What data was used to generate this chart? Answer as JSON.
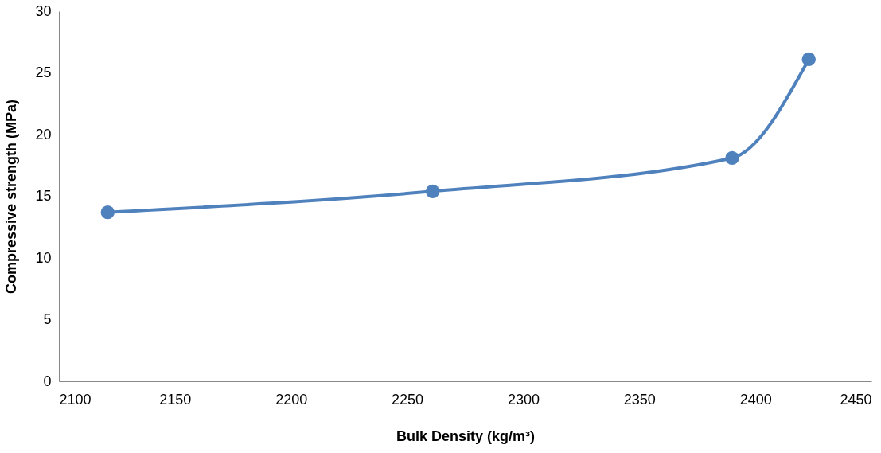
{
  "chart_data": {
    "type": "line",
    "xlabel": "Bulk Density (kg/m³)",
    "ylabel": "Compressive strength (MPa)",
    "x": [
      2121,
      2261,
      2390,
      2423
    ],
    "series": [
      {
        "color": "#4f81bd",
        "values": [
          13.7,
          15.4,
          18.1,
          26.1
        ]
      }
    ],
    "xlim": [
      2100,
      2450
    ],
    "xticks": [
      2100,
      2150,
      2200,
      2250,
      2300,
      2350,
      2400,
      2450
    ],
    "ylim": [
      0,
      30
    ],
    "yticks": [
      0,
      5,
      10,
      15,
      20,
      25,
      30
    ],
    "grid": false,
    "legend": false,
    "marker": "circle",
    "line_style": "solid"
  }
}
